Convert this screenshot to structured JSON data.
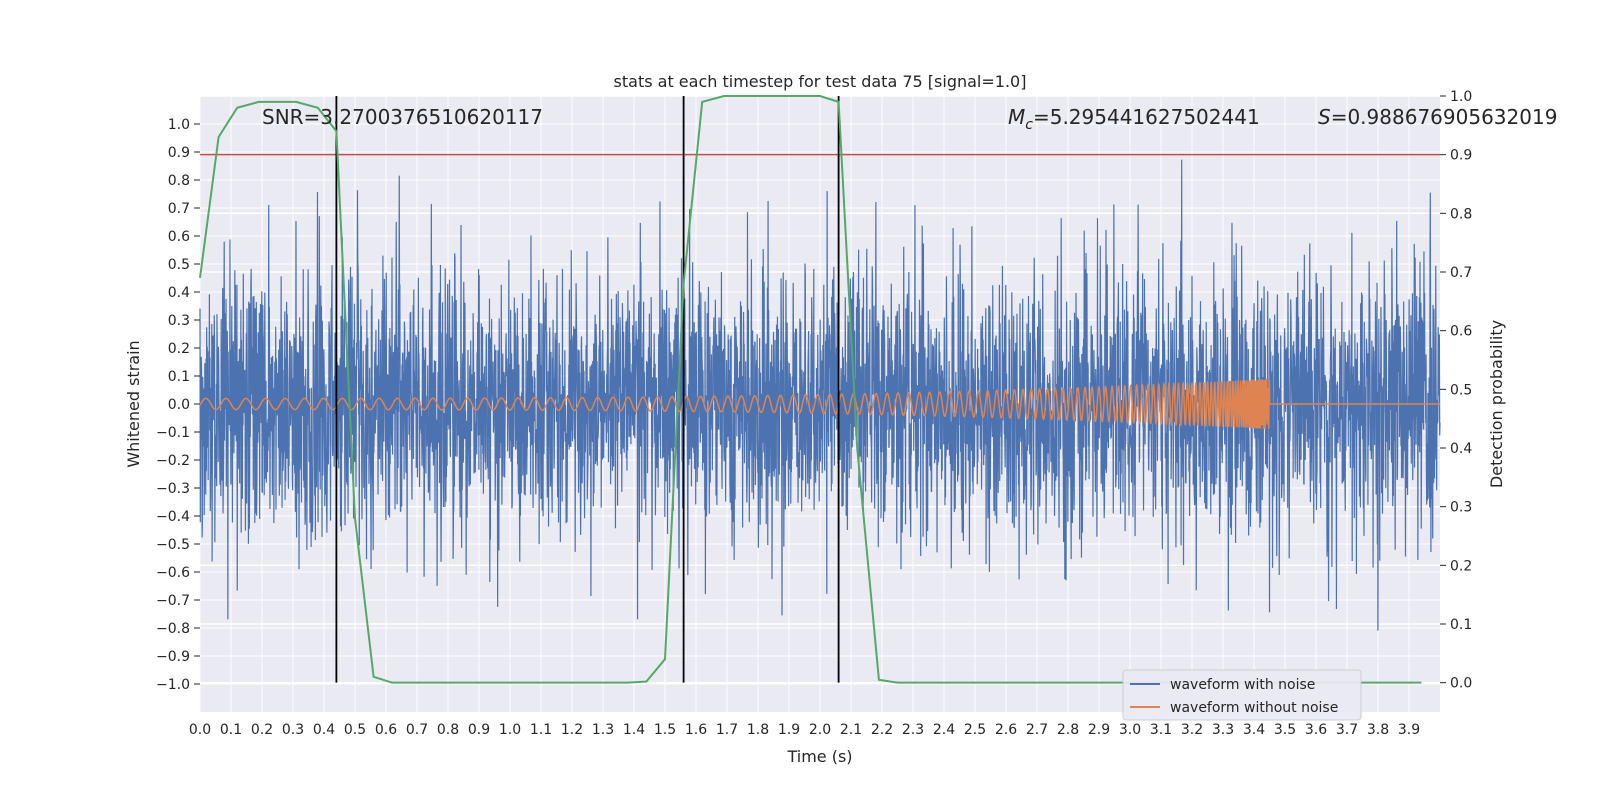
{
  "chart_data": {
    "type": "line",
    "title": "stats at each timestep for test data 75 [signal=1.0]",
    "xlabel": "Time (s)",
    "ylabel": "Whitened strain",
    "ylabel_right": "Detection probability",
    "xlim": [
      0.0,
      4.0
    ],
    "ylim": [
      -1.1,
      1.1
    ],
    "ylim_right": [
      -0.05,
      1.0
    ],
    "x_ticks": [
      "0.0",
      "0.1",
      "0.2",
      "0.3",
      "0.4",
      "0.5",
      "0.6",
      "0.7",
      "0.8",
      "0.9",
      "1.0",
      "1.1",
      "1.2",
      "1.3",
      "1.4",
      "1.5",
      "1.6",
      "1.7",
      "1.8",
      "1.9",
      "2.0",
      "2.1",
      "2.2",
      "2.3",
      "2.4",
      "2.5",
      "2.6",
      "2.7",
      "2.8",
      "2.9",
      "3.0",
      "3.1",
      "3.2",
      "3.3",
      "3.4",
      "3.5",
      "3.6",
      "3.7",
      "3.8",
      "3.9"
    ],
    "y_ticks": [
      "1.0",
      "0.9",
      "0.8",
      "0.7",
      "0.6",
      "0.5",
      "0.4",
      "0.3",
      "0.2",
      "0.1",
      "0.0",
      "−0.1",
      "−0.2",
      "−0.3",
      "−0.4",
      "−0.5",
      "−0.6",
      "−0.7",
      "−0.8",
      "−0.9",
      "−1.0"
    ],
    "y_tick_values": [
      1.0,
      0.9,
      0.8,
      0.7,
      0.6,
      0.5,
      0.4,
      0.3,
      0.2,
      0.1,
      0.0,
      -0.1,
      -0.2,
      -0.3,
      -0.4,
      -0.5,
      -0.6,
      -0.7,
      -0.8,
      -0.9,
      -1.0
    ],
    "y2_ticks": [
      "1.0",
      "0.9",
      "0.8",
      "0.7",
      "0.6",
      "0.5",
      "0.4",
      "0.3",
      "0.2",
      "0.1",
      "0.0"
    ],
    "y2_tick_values": [
      1.0,
      0.9,
      0.8,
      0.7,
      0.6,
      0.5,
      0.4,
      0.3,
      0.2,
      0.1,
      0.0
    ],
    "annotations": {
      "snr": "SNR=3.2700376510620117",
      "mc_symbol": "M",
      "mc_sub": "c",
      "mc_value": "=5.295441627502441",
      "s_symbol": "S",
      "s_value": "=0.9886769056320​19"
    },
    "threshold": 0.9,
    "vertical_lines": [
      0.44,
      1.56,
      2.06
    ],
    "noise": {
      "name": "waveform with noise",
      "color": "#4c72b0",
      "samples": 4096,
      "approx_std": 0.24,
      "range": [
        -1.0,
        0.95
      ]
    },
    "signal": {
      "name": "waveform without noise",
      "color": "#dd8452",
      "end_time": 3.45,
      "start_amplitude": 0.02,
      "end_amplitude": 0.09
    },
    "detection_probability": {
      "color": "#55a868",
      "t": [
        0.0,
        0.06,
        0.12,
        0.19,
        0.25,
        0.31,
        0.38,
        0.44,
        0.5,
        0.56,
        0.62,
        0.69,
        0.75,
        0.81,
        0.88,
        0.94,
        1.0,
        1.06,
        1.12,
        1.19,
        1.25,
        1.31,
        1.38,
        1.44,
        1.5,
        1.56,
        1.62,
        1.69,
        1.75,
        1.81,
        1.88,
        1.94,
        2.0,
        2.06,
        2.12,
        2.19,
        2.25,
        2.31,
        2.38,
        2.44,
        2.5,
        2.56,
        2.62,
        2.69,
        2.75,
        2.81,
        2.88,
        2.94,
        3.0,
        3.06,
        3.12,
        3.19,
        3.25,
        3.31,
        3.38,
        3.44,
        3.5,
        3.56,
        3.62,
        3.69,
        3.75,
        3.81,
        3.88,
        3.94
      ],
      "p": [
        0.69,
        0.93,
        0.98,
        0.99,
        0.99,
        0.99,
        0.98,
        0.94,
        0.28,
        0.01,
        0.0,
        0.0,
        0.0,
        0.0,
        0.0,
        0.0,
        0.0,
        0.0,
        0.0,
        0.0,
        0.0,
        0.0,
        0.0,
        0.002,
        0.04,
        0.68,
        0.99,
        1.0,
        1.0,
        1.0,
        1.0,
        1.0,
        1.0,
        0.99,
        0.4,
        0.005,
        0.0,
        0.0,
        0.0,
        0.0,
        0.0,
        0.0,
        0.0,
        0.0,
        0.0,
        0.0,
        0.0,
        0.0,
        0.0,
        0.0,
        0.0,
        0.0,
        0.0,
        0.0,
        0.0,
        0.0,
        0.0,
        0.0,
        0.0,
        0.0,
        0.0,
        0.0,
        0.0,
        0.0
      ]
    },
    "legend_location": "lower right",
    "grid": true
  }
}
